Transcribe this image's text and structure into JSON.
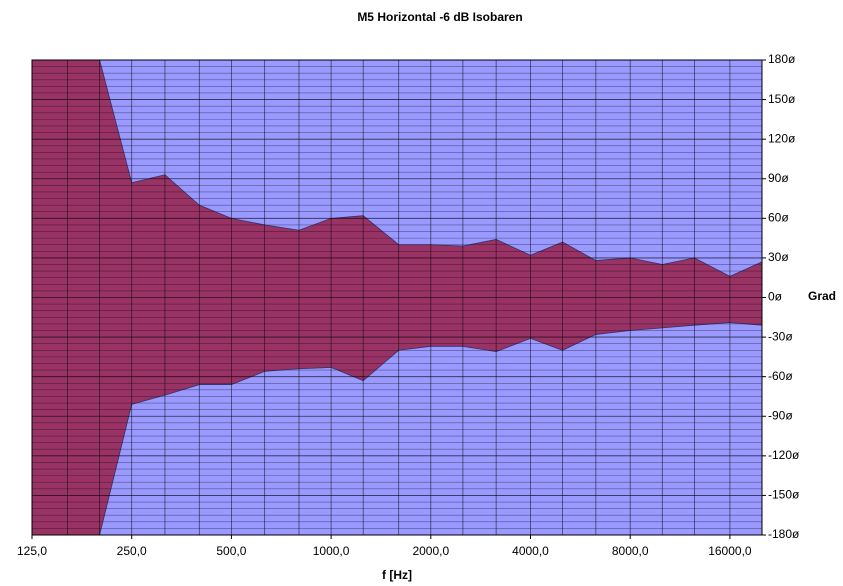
{
  "chart_data": {
    "type": "range_area",
    "title": "M5 Horizontal -6 dB Isobaren",
    "x_label": "f [Hz]",
    "y_label": "Grad",
    "x": [
      125,
      160,
      200,
      250,
      315,
      400,
      500,
      630,
      800,
      1000,
      1250,
      1600,
      2000,
      2500,
      3150,
      4000,
      5000,
      6300,
      8000,
      10000,
      12500,
      16000,
      20000
    ],
    "upper": [
      180,
      180,
      180,
      87,
      93,
      70,
      60,
      55,
      51,
      60,
      62,
      40,
      40,
      39,
      44,
      32,
      42,
      28,
      30,
      25,
      30,
      16,
      27
    ],
    "lower": [
      -180,
      -180,
      -180,
      -81,
      -74,
      -66,
      -66,
      -56,
      -54,
      -53,
      -63,
      -40,
      -37,
      -37,
      -41,
      -31,
      -40,
      -28,
      -25,
      -23,
      -21,
      -19,
      -21
    ],
    "color": "#993366",
    "background": "#9999ff",
    "log_x": true,
    "grid": true,
    "xlim": [
      125,
      20000
    ],
    "ylim": [
      -180,
      180
    ],
    "xticks": [
      {
        "value": 125,
        "label": "125,0"
      },
      {
        "value": 250,
        "label": "250,0"
      },
      {
        "value": 500,
        "label": "500,0"
      },
      {
        "value": 1000,
        "label": "1000,0"
      },
      {
        "value": 2000,
        "label": "2000,0"
      },
      {
        "value": 4000,
        "label": "4000,0"
      },
      {
        "value": 8000,
        "label": "8000,0"
      },
      {
        "value": 16000,
        "label": "16000,0"
      }
    ],
    "yticks": [
      {
        "value": 180,
        "label": "180ø"
      },
      {
        "value": 150,
        "label": "150ø"
      },
      {
        "value": 120,
        "label": "120ø"
      },
      {
        "value": 90,
        "label": "90ø"
      },
      {
        "value": 60,
        "label": "60ø"
      },
      {
        "value": 30,
        "label": "30ø"
      },
      {
        "value": 0,
        "label": "0ø"
      },
      {
        "value": -30,
        "label": "-30ø"
      },
      {
        "value": -60,
        "label": "-60ø"
      },
      {
        "value": -90,
        "label": "-90ø"
      },
      {
        "value": -120,
        "label": "-120ø"
      },
      {
        "value": -150,
        "label": "-150ø"
      },
      {
        "value": -180,
        "label": "-180ø"
      }
    ]
  }
}
